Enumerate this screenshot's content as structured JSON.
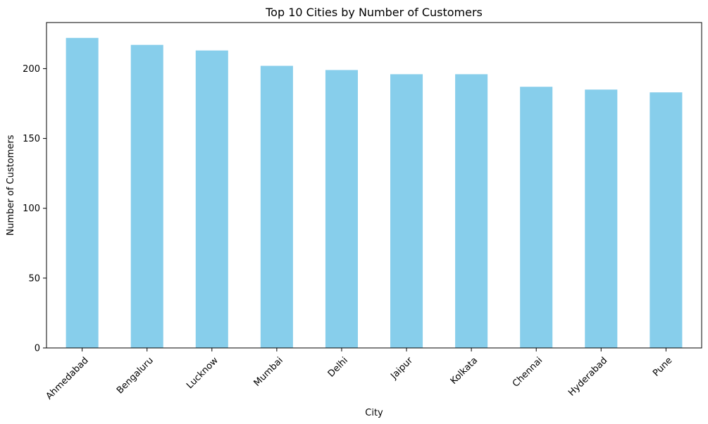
{
  "chart_data": {
    "type": "bar",
    "title": "Top 10 Cities by Number of Customers",
    "xlabel": "City",
    "ylabel": "Number of Customers",
    "categories": [
      "Ahmedabad",
      "Bengaluru",
      "Lucknow",
      "Mumbai",
      "Delhi",
      "Jaipur",
      "Kolkata",
      "Chennai",
      "Hyderabad",
      "Pune"
    ],
    "values": [
      222,
      217,
      213,
      202,
      199,
      196,
      196,
      187,
      185,
      183
    ],
    "ylim": [
      0,
      233
    ],
    "yticks": [
      0,
      50,
      100,
      150,
      200
    ],
    "grid": false,
    "legend": "none",
    "bar_color": "#87CEEB"
  }
}
